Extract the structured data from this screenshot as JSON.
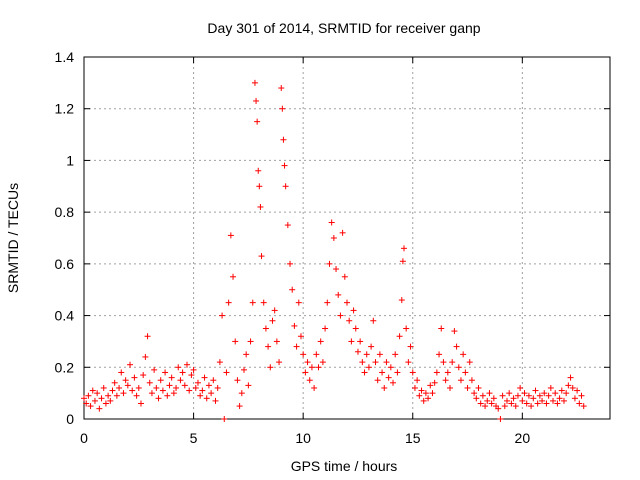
{
  "chart_data": {
    "type": "scatter",
    "title": "Day 301 of 2014, SRMTID for receiver ganp",
    "xlabel": "GPS time / hours",
    "ylabel": "SRMTID / TECUs",
    "xlim": [
      0,
      24
    ],
    "ylim": [
      0,
      1.4
    ],
    "xticks": [
      0,
      5,
      10,
      15,
      20
    ],
    "yticks": [
      0,
      0.2,
      0.4,
      0.6,
      0.8,
      1,
      1.2,
      1.4
    ],
    "xtick_labels": [
      "0",
      "5",
      "10",
      "15",
      "20"
    ],
    "ytick_labels": [
      "0",
      "0.2",
      "0.4",
      "0.6",
      "0.8",
      "1",
      "1.2",
      "1.4"
    ],
    "grid": true,
    "marker": "+",
    "color": "#ff0000",
    "series": [
      {
        "name": "SRMTID",
        "points": [
          [
            0.0,
            0.08
          ],
          [
            0.1,
            0.06
          ],
          [
            0.2,
            0.09
          ],
          [
            0.3,
            0.05
          ],
          [
            0.4,
            0.11
          ],
          [
            0.5,
            0.07
          ],
          [
            0.6,
            0.1
          ],
          [
            0.7,
            0.04
          ],
          [
            0.8,
            0.08
          ],
          [
            0.9,
            0.12
          ],
          [
            1.0,
            0.06
          ],
          [
            1.1,
            0.09
          ],
          [
            1.2,
            0.07
          ],
          [
            1.3,
            0.11
          ],
          [
            1.4,
            0.14
          ],
          [
            1.5,
            0.09
          ],
          [
            1.6,
            0.12
          ],
          [
            1.7,
            0.18
          ],
          [
            1.8,
            0.1
          ],
          [
            1.9,
            0.15
          ],
          [
            2.0,
            0.13
          ],
          [
            2.1,
            0.21
          ],
          [
            2.2,
            0.11
          ],
          [
            2.3,
            0.16
          ],
          [
            2.4,
            0.09
          ],
          [
            2.5,
            0.12
          ],
          [
            2.6,
            0.06
          ],
          [
            2.7,
            0.17
          ],
          [
            2.8,
            0.24
          ],
          [
            2.9,
            0.32
          ],
          [
            3.0,
            0.14
          ],
          [
            3.1,
            0.1
          ],
          [
            3.2,
            0.19
          ],
          [
            3.3,
            0.12
          ],
          [
            3.4,
            0.08
          ],
          [
            3.5,
            0.15
          ],
          [
            3.6,
            0.11
          ],
          [
            3.7,
            0.18
          ],
          [
            3.8,
            0.09
          ],
          [
            3.9,
            0.13
          ],
          [
            4.0,
            0.16
          ],
          [
            4.1,
            0.1
          ],
          [
            4.2,
            0.12
          ],
          [
            4.3,
            0.2
          ],
          [
            4.4,
            0.15
          ],
          [
            4.5,
            0.18
          ],
          [
            4.6,
            0.13
          ],
          [
            4.7,
            0.21
          ],
          [
            4.8,
            0.11
          ],
          [
            4.9,
            0.17
          ],
          [
            5.0,
            0.19
          ],
          [
            5.1,
            0.12
          ],
          [
            5.2,
            0.14
          ],
          [
            5.3,
            0.09
          ],
          [
            5.4,
            0.11
          ],
          [
            5.5,
            0.16
          ],
          [
            5.6,
            0.08
          ],
          [
            5.7,
            0.13
          ],
          [
            5.8,
            0.1
          ],
          [
            5.9,
            0.15
          ],
          [
            6.0,
            0.07
          ],
          [
            6.1,
            0.12
          ],
          [
            6.2,
            0.22
          ],
          [
            6.3,
            0.4
          ],
          [
            6.4,
            0.0
          ],
          [
            6.5,
            0.18
          ],
          [
            6.6,
            0.45
          ],
          [
            6.7,
            0.71
          ],
          [
            6.8,
            0.55
          ],
          [
            6.9,
            0.3
          ],
          [
            7.0,
            0.15
          ],
          [
            7.1,
            0.05
          ],
          [
            7.2,
            0.1
          ],
          [
            7.3,
            0.19
          ],
          [
            7.4,
            0.25
          ],
          [
            7.5,
            0.13
          ],
          [
            7.6,
            0.3
          ],
          [
            7.7,
            0.45
          ],
          [
            7.8,
            1.3
          ],
          [
            7.85,
            1.23
          ],
          [
            7.9,
            1.15
          ],
          [
            7.95,
            0.96
          ],
          [
            8.0,
            0.9
          ],
          [
            8.05,
            0.82
          ],
          [
            8.1,
            0.63
          ],
          [
            8.2,
            0.45
          ],
          [
            8.3,
            0.35
          ],
          [
            8.4,
            0.28
          ],
          [
            8.5,
            0.2
          ],
          [
            8.6,
            0.38
          ],
          [
            8.7,
            0.42
          ],
          [
            8.8,
            0.3
          ],
          [
            8.9,
            0.22
          ],
          [
            9.0,
            1.28
          ],
          [
            9.05,
            1.2
          ],
          [
            9.1,
            1.08
          ],
          [
            9.15,
            0.98
          ],
          [
            9.2,
            0.9
          ],
          [
            9.3,
            0.75
          ],
          [
            9.4,
            0.6
          ],
          [
            9.5,
            0.5
          ],
          [
            9.6,
            0.36
          ],
          [
            9.7,
            0.28
          ],
          [
            9.8,
            0.45
          ],
          [
            9.9,
            0.32
          ],
          [
            10.0,
            0.25
          ],
          [
            10.1,
            0.18
          ],
          [
            10.2,
            0.22
          ],
          [
            10.3,
            0.15
          ],
          [
            10.4,
            0.2
          ],
          [
            10.5,
            0.12
          ],
          [
            10.6,
            0.25
          ],
          [
            10.7,
            0.2
          ],
          [
            10.8,
            0.3
          ],
          [
            10.9,
            0.22
          ],
          [
            11.0,
            0.35
          ],
          [
            11.1,
            0.45
          ],
          [
            11.2,
            0.6
          ],
          [
            11.3,
            0.76
          ],
          [
            11.4,
            0.7
          ],
          [
            11.5,
            0.58
          ],
          [
            11.6,
            0.48
          ],
          [
            11.7,
            0.4
          ],
          [
            11.8,
            0.72
          ],
          [
            11.9,
            0.55
          ],
          [
            12.0,
            0.45
          ],
          [
            12.1,
            0.38
          ],
          [
            12.2,
            0.3
          ],
          [
            12.3,
            0.42
          ],
          [
            12.4,
            0.35
          ],
          [
            12.5,
            0.26
          ],
          [
            12.6,
            0.3
          ],
          [
            12.7,
            0.22
          ],
          [
            12.8,
            0.18
          ],
          [
            12.9,
            0.25
          ],
          [
            13.0,
            0.2
          ],
          [
            13.1,
            0.28
          ],
          [
            13.2,
            0.38
          ],
          [
            13.3,
            0.22
          ],
          [
            13.4,
            0.15
          ],
          [
            13.5,
            0.25
          ],
          [
            13.6,
            0.18
          ],
          [
            13.7,
            0.12
          ],
          [
            13.8,
            0.22
          ],
          [
            13.9,
            0.16
          ],
          [
            14.0,
            0.2
          ],
          [
            14.1,
            0.14
          ],
          [
            14.2,
            0.25
          ],
          [
            14.3,
            0.18
          ],
          [
            14.4,
            0.32
          ],
          [
            14.5,
            0.46
          ],
          [
            14.55,
            0.61
          ],
          [
            14.6,
            0.66
          ],
          [
            14.7,
            0.35
          ],
          [
            14.8,
            0.22
          ],
          [
            14.9,
            0.28
          ],
          [
            15.0,
            0.18
          ],
          [
            15.1,
            0.12
          ],
          [
            15.2,
            0.15
          ],
          [
            15.3,
            0.09
          ],
          [
            15.4,
            0.11
          ],
          [
            15.5,
            0.07
          ],
          [
            15.6,
            0.1
          ],
          [
            15.7,
            0.08
          ],
          [
            15.8,
            0.13
          ],
          [
            15.9,
            0.1
          ],
          [
            16.0,
            0.14
          ],
          [
            16.1,
            0.18
          ],
          [
            16.2,
            0.25
          ],
          [
            16.3,
            0.35
          ],
          [
            16.4,
            0.22
          ],
          [
            16.5,
            0.15
          ],
          [
            16.6,
            0.18
          ],
          [
            16.7,
            0.12
          ],
          [
            16.8,
            0.22
          ],
          [
            16.9,
            0.34
          ],
          [
            17.0,
            0.28
          ],
          [
            17.1,
            0.2
          ],
          [
            17.2,
            0.15
          ],
          [
            17.3,
            0.25
          ],
          [
            17.4,
            0.18
          ],
          [
            17.5,
            0.12
          ],
          [
            17.6,
            0.22
          ],
          [
            17.7,
            0.15
          ],
          [
            17.8,
            0.1
          ],
          [
            17.9,
            0.08
          ],
          [
            18.0,
            0.12
          ],
          [
            18.1,
            0.06
          ],
          [
            18.2,
            0.09
          ],
          [
            18.3,
            0.05
          ],
          [
            18.4,
            0.07
          ],
          [
            18.5,
            0.1
          ],
          [
            18.6,
            0.06
          ],
          [
            18.7,
            0.08
          ],
          [
            18.8,
            0.05
          ],
          [
            18.9,
            0.04
          ],
          [
            19.0,
            0.0
          ],
          [
            19.1,
            0.09
          ],
          [
            19.2,
            0.05
          ],
          [
            19.3,
            0.07
          ],
          [
            19.4,
            0.1
          ],
          [
            19.5,
            0.06
          ],
          [
            19.6,
            0.08
          ],
          [
            19.7,
            0.05
          ],
          [
            19.8,
            0.09
          ],
          [
            19.9,
            0.12
          ],
          [
            20.0,
            0.07
          ],
          [
            20.1,
            0.1
          ],
          [
            20.2,
            0.06
          ],
          [
            20.3,
            0.09
          ],
          [
            20.4,
            0.05
          ],
          [
            20.5,
            0.08
          ],
          [
            20.6,
            0.11
          ],
          [
            20.7,
            0.06
          ],
          [
            20.8,
            0.09
          ],
          [
            20.9,
            0.07
          ],
          [
            21.0,
            0.1
          ],
          [
            21.1,
            0.06
          ],
          [
            21.2,
            0.09
          ],
          [
            21.3,
            0.12
          ],
          [
            21.4,
            0.07
          ],
          [
            21.5,
            0.1
          ],
          [
            21.6,
            0.06
          ],
          [
            21.7,
            0.08
          ],
          [
            21.8,
            0.11
          ],
          [
            21.9,
            0.07
          ],
          [
            22.0,
            0.1
          ],
          [
            22.1,
            0.13
          ],
          [
            22.2,
            0.16
          ],
          [
            22.3,
            0.12
          ],
          [
            22.4,
            0.08
          ],
          [
            22.5,
            0.11
          ],
          [
            22.6,
            0.06
          ],
          [
            22.7,
            0.09
          ],
          [
            22.8,
            0.05
          ]
        ]
      }
    ]
  }
}
